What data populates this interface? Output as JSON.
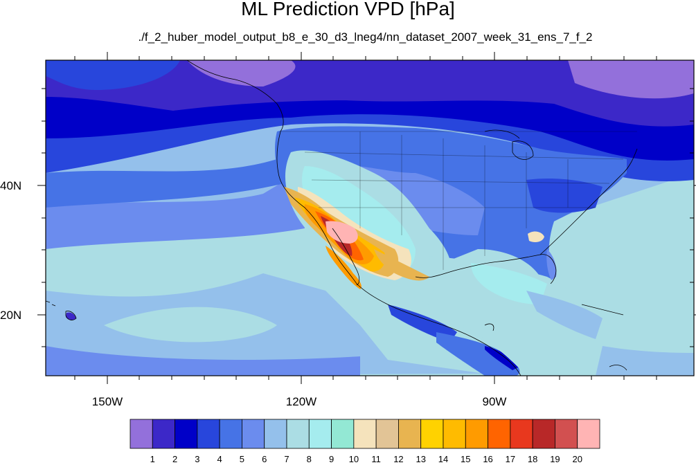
{
  "title": "ML Prediction VPD [hPa]",
  "subtitle": "./f_2_huber_model_output_b8_e_30_d3_lneg4/nn_dataset_2007_week_31_ens_7_f_2",
  "lat_labels": [
    "40N",
    "20N"
  ],
  "lon_labels": [
    "150W",
    "120W",
    "90W"
  ],
  "colorbar": {
    "labels": [
      "1",
      "2",
      "3",
      "4",
      "5",
      "6",
      "7",
      "8",
      "9",
      "10",
      "11",
      "12",
      "13",
      "14",
      "15",
      "16",
      "17",
      "18",
      "19",
      "20"
    ],
    "colors": [
      "#9370db",
      "#3c28c8",
      "#0000c8",
      "#2846dc",
      "#4673e6",
      "#6b8cee",
      "#94c0eb",
      "#abdde4",
      "#a5ecee",
      "#93e8d4",
      "#f5e3bc",
      "#e2c496",
      "#e8b450",
      "#ffd200",
      "#ffbb00",
      "#ff9b00",
      "#ff6400",
      "#e8381e",
      "#b82828",
      "#d25050",
      "#ffb4b4"
    ]
  },
  "map_data": {
    "field": "VPD",
    "units": "hPa",
    "dataset_week": "2007 week 31",
    "lat_range": [
      10.5,
      59
    ],
    "lon_range": [
      -160,
      -61.5
    ],
    "features": [
      {
        "name": "background_north",
        "level": "2-3"
      },
      {
        "name": "ocean_subtropical_pacific",
        "level": "7-8"
      },
      {
        "name": "us_interior",
        "level": "4-6"
      },
      {
        "name": "desert_southwest_core",
        "level": "19-20"
      },
      {
        "name": "hawaii",
        "level": "2"
      }
    ]
  }
}
